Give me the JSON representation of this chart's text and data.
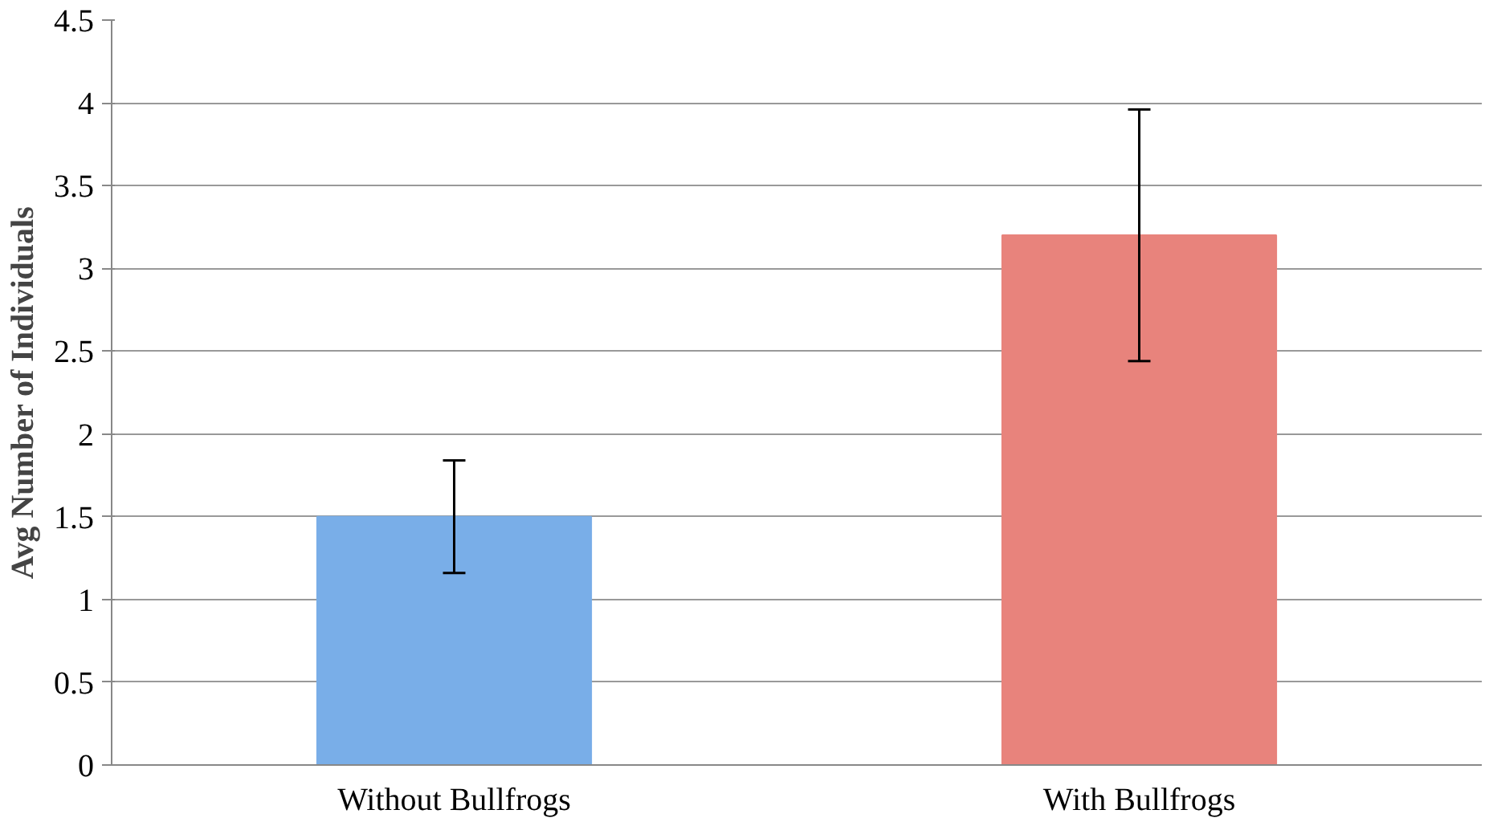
{
  "chart_data": {
    "type": "bar",
    "ylabel": "Avg Number of Individuals",
    "categories": [
      "Without Bullfrogs",
      "With Bullfrogs"
    ],
    "values": [
      1.5,
      3.2
    ],
    "colors": [
      "#79aee8",
      "#e8837c"
    ],
    "errors": [
      0.34,
      0.76
    ],
    "ylim": [
      0,
      4.5
    ],
    "yticks": [
      0,
      0.5,
      1,
      1.5,
      2,
      2.5,
      3,
      3.5,
      4,
      4.5
    ],
    "grid": "y"
  }
}
